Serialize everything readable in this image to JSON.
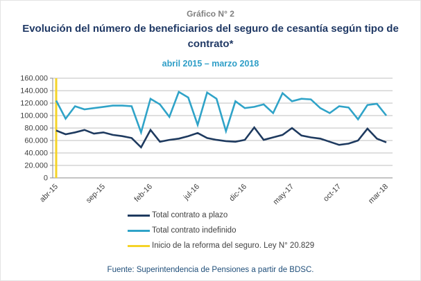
{
  "figure": {
    "kicker": "Gráfico N° 2",
    "title": "Evolución del número de beneficiarios del seguro de cesantía según tipo de contrato*",
    "subtitle": "abril 2015 – marzo 2018",
    "source": "Fuente: Superintendencia de Pensiones a partir de BDSC."
  },
  "chart_data": {
    "type": "line",
    "categories": [
      "abr-15",
      "may-15",
      "jun-15",
      "jul-15",
      "ago-15",
      "sep-15",
      "oct-15",
      "nov-15",
      "dic-15",
      "ene-16",
      "feb-16",
      "mar-16",
      "abr-16",
      "may-16",
      "jun-16",
      "jul-16",
      "ago-16",
      "sep-16",
      "oct-16",
      "nov-16",
      "dic-16",
      "ene-17",
      "feb-17",
      "mar-17",
      "abr-17",
      "may-17",
      "jun-17",
      "jul-17",
      "ago-17",
      "sep-17",
      "oct-17",
      "nov-17",
      "dic-17",
      "ene-18",
      "feb-18",
      "mar-18"
    ],
    "x_axis_tick_labels": [
      "abr-15",
      "sep-15",
      "feb-16",
      "jul-16",
      "dic-16",
      "may-17",
      "oct-17",
      "mar-18"
    ],
    "x_axis_tick_indices": [
      0,
      5,
      10,
      15,
      20,
      25,
      30,
      35
    ],
    "series": [
      {
        "name": "Total contrato a plazo",
        "color": "#1e3a5f",
        "values": [
          76000,
          70000,
          73000,
          77000,
          71000,
          73000,
          69000,
          67000,
          64000,
          49000,
          77000,
          58000,
          61000,
          63000,
          67000,
          72000,
          64000,
          61000,
          59000,
          58000,
          61000,
          81000,
          61000,
          65000,
          69000,
          80000,
          68000,
          65000,
          63000,
          58000,
          53000,
          55000,
          60000,
          79000,
          63000,
          57000
        ]
      },
      {
        "name": "Total contrato indefinido",
        "color": "#2fa3c8",
        "values": [
          124000,
          95000,
          115000,
          110000,
          112000,
          114000,
          116000,
          116000,
          115000,
          73000,
          127000,
          118000,
          98000,
          138000,
          129000,
          85000,
          137000,
          127000,
          75000,
          123000,
          112000,
          114000,
          118000,
          104000,
          136000,
          123000,
          127000,
          126000,
          112000,
          104000,
          115000,
          113000,
          94000,
          117000,
          119000,
          100000
        ]
      }
    ],
    "annotation": {
      "label": "Inicio de la reforma del seguro. Ley N° 20.829",
      "color": "#f5d327",
      "at_category": "abr-15",
      "x_index": 0
    },
    "ylim": [
      0,
      160000
    ],
    "ytick_step": 20000,
    "ytick_labels": [
      "0",
      "20.000",
      "40.000",
      "60.000",
      "80.000",
      "100.000",
      "120.000",
      "140.000",
      "160.000"
    ],
    "grid": "horizontal-only",
    "legend_position": "bottom",
    "colors": {
      "grid": "#bfbfbf",
      "axis": "#898989",
      "axis_text": "#404040"
    }
  }
}
